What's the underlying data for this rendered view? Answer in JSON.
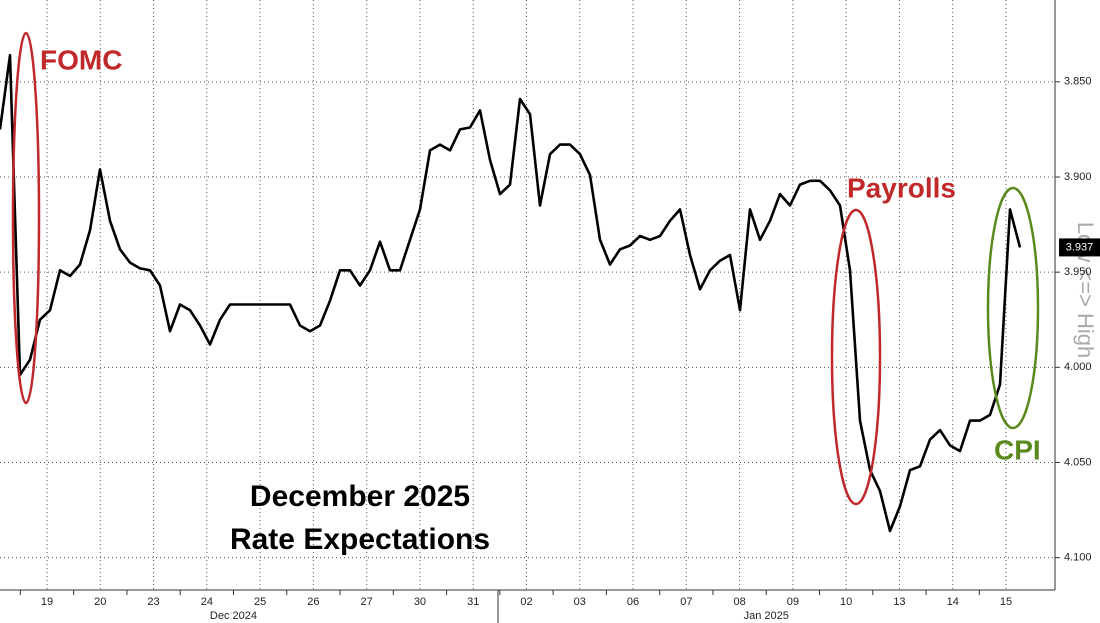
{
  "chart_data": {
    "type": "line",
    "title_lines": [
      "December 2025",
      "Rate Expectations"
    ],
    "axis_side_label": "Low <=> High",
    "x_labels": [
      "19",
      "20",
      "23",
      "24",
      "25",
      "26",
      "27",
      "30",
      "31",
      "02",
      "03",
      "06",
      "07",
      "08",
      "09",
      "10",
      "13",
      "14",
      "15"
    ],
    "months": [
      "Dec 2024",
      "Jan 2025"
    ],
    "ylim": [
      3.807,
      4.117
    ],
    "y_inverted": true,
    "yticks": [
      {
        "value": 3.85,
        "label": "3.850"
      },
      {
        "value": 3.9,
        "label": "3.900"
      },
      {
        "value": 3.95,
        "label": "3.950"
      },
      {
        "value": 4.0,
        "label": "4.000"
      },
      {
        "value": 4.05,
        "label": "4.050"
      },
      {
        "value": 4.1,
        "label": "4.100"
      }
    ],
    "grid": true,
    "series": [
      {
        "color": "#000000",
        "values": [
          3.875,
          3.836,
          4.004,
          3.996,
          3.975,
          3.97,
          3.949,
          3.952,
          3.946,
          3.928,
          3.896,
          3.923,
          3.938,
          3.945,
          3.948,
          3.949,
          3.957,
          3.981,
          3.967,
          3.97,
          3.978,
          3.988,
          3.975,
          3.967,
          3.967,
          3.967,
          3.967,
          3.967,
          3.967,
          3.967,
          3.978,
          3.981,
          3.978,
          3.965,
          3.949,
          3.949,
          3.957,
          3.949,
          3.934,
          3.949,
          3.949,
          3.933,
          3.917,
          3.886,
          3.883,
          3.886,
          3.875,
          3.874,
          3.865,
          3.891,
          3.909,
          3.904,
          3.859,
          3.867,
          3.915,
          3.888,
          3.883,
          3.883,
          3.888,
          3.899,
          3.933,
          3.946,
          3.938,
          3.936,
          3.931,
          3.933,
          3.931,
          3.923,
          3.917,
          3.941,
          3.959,
          3.949,
          3.944,
          3.941,
          3.97,
          3.917,
          3.933,
          3.923,
          3.909,
          3.915,
          3.904,
          3.902,
          3.902,
          3.907,
          3.915,
          3.949,
          4.028,
          4.054,
          4.065,
          4.086,
          4.073,
          4.054,
          4.052,
          4.038,
          4.033,
          4.041,
          4.044,
          4.028,
          4.028,
          4.025,
          4.009,
          3.917,
          3.937
        ]
      }
    ],
    "annotations": [
      {
        "text": "FOMC",
        "color": "#c0282a"
      },
      {
        "text": "Payrolls",
        "color": "#c0282a"
      },
      {
        "text": "CPI",
        "color": "#5a8a1e"
      }
    ]
  }
}
